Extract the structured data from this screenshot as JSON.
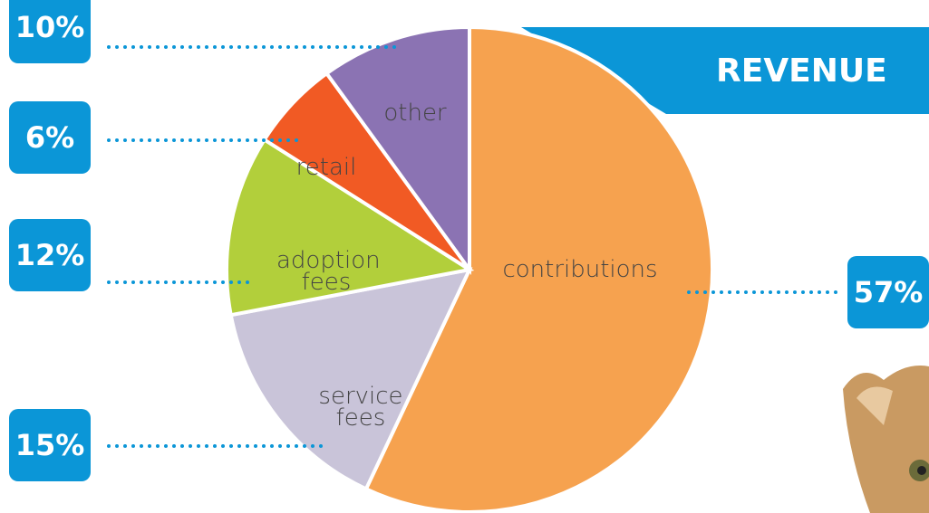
{
  "chart_data": {
    "type": "pie",
    "title": "REVENUE",
    "categories": [
      "contributions",
      "service fees",
      "adoption fees",
      "retail",
      "other"
    ],
    "values": [
      57,
      15,
      12,
      6,
      10
    ],
    "value_labels": [
      "57%",
      "15%",
      "12%",
      "6%",
      "10%"
    ],
    "colors": [
      "#f6a24f",
      "#c9c4d9",
      "#b2cf3b",
      "#f15a24",
      "#8b73b3"
    ]
  }
}
